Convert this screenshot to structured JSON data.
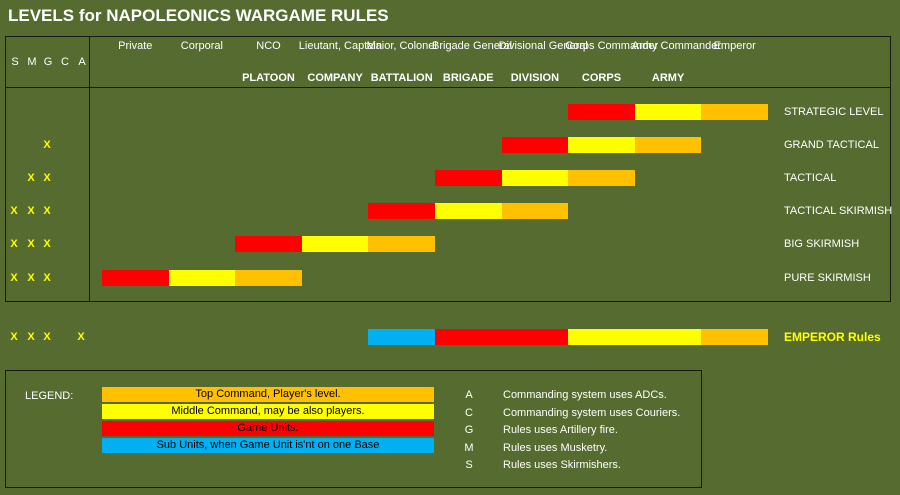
{
  "title": "LEVELS for NAPOLEONICS WARGAME RULES",
  "colors": {
    "background": "#556b2f",
    "orange": "#ffc000",
    "yellow": "#ffff00",
    "red": "#ff0000",
    "blue": "#00b0f0",
    "mark": "#ffff00"
  },
  "rule_letters": [
    "S",
    "M",
    "G",
    "C",
    "A"
  ],
  "ranks": [
    "Private",
    "Corporal",
    "NCO",
    "Lieutant, Captain",
    "Maior, Colonel",
    "Brigade General",
    "Divisional General",
    "Corps Commander",
    "Army Commander",
    "Emperor"
  ],
  "units": [
    "PLATOON",
    "COMPANY",
    "BATTALION",
    "BRIGADE",
    "DIVISION",
    "CORPS",
    "ARMY"
  ],
  "levels": [
    {
      "name": "STRATEGIC LEVEL",
      "marks": [
        "",
        "",
        "",
        "",
        ""
      ],
      "bars": [
        "red",
        "yellow",
        "orange"
      ]
    },
    {
      "name": "GRAND TACTICAL",
      "marks": [
        "",
        "",
        "X",
        "",
        ""
      ],
      "bars": [
        "red",
        "yellow",
        "orange"
      ]
    },
    {
      "name": "TACTICAL",
      "marks": [
        "",
        "X",
        "X",
        "",
        ""
      ],
      "bars": [
        "red",
        "yellow",
        "orange"
      ]
    },
    {
      "name": "TACTICAL SKIRMISH",
      "marks": [
        "X",
        "X",
        "X",
        "",
        ""
      ],
      "bars": [
        "red",
        "yellow",
        "orange"
      ]
    },
    {
      "name": "BIG SKIRMISH",
      "marks": [
        "X",
        "X",
        "X",
        "",
        ""
      ],
      "bars": [
        "red",
        "yellow",
        "orange"
      ]
    },
    {
      "name": "PURE SKIRMISH",
      "marks": [
        "X",
        "X",
        "X",
        "",
        ""
      ],
      "bars": [
        "red",
        "yellow",
        "orange"
      ]
    }
  ],
  "emperor": {
    "name": "EMPEROR Rules",
    "marks": [
      "X",
      "X",
      "X",
      "",
      "X"
    ]
  },
  "legend": {
    "title": "LEGEND:",
    "items": [
      {
        "label": "Top Command, Player's level.",
        "color": "#ffc000"
      },
      {
        "label": "Middle Command, may be also players.",
        "color": "#ffff00"
      },
      {
        "label": "Game Units.",
        "color": "#ff0000"
      },
      {
        "label": "Sub Units, when Game Unit is'nt on one Base",
        "color": "#00b0f0"
      }
    ],
    "keys": [
      {
        "letter": "A",
        "text": "Commanding system uses ADCs."
      },
      {
        "letter": "C",
        "text": "Commanding system uses Couriers."
      },
      {
        "letter": "G",
        "text": "Rules uses Artillery fire."
      },
      {
        "letter": "M",
        "text": "Rules uses Musketry."
      },
      {
        "letter": "S",
        "text": "Rules uses Skirmishers."
      }
    ]
  }
}
